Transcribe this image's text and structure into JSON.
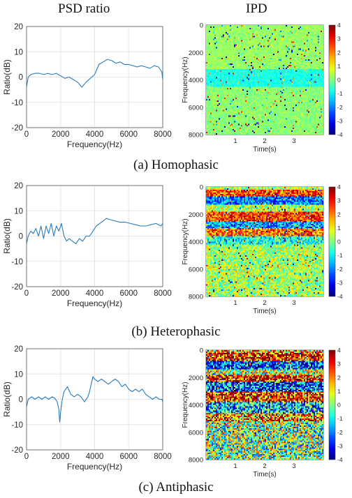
{
  "headers": {
    "left": "PSD ratio",
    "right": "IPD"
  },
  "captions": [
    "(a) Homophasic",
    "(b) Heterophasic",
    "(c) Antiphasic"
  ],
  "line_axes": {
    "xlabel": "Frequency(Hz)",
    "ylabel": "Ratio(dB)",
    "xlim": [
      0,
      8000
    ],
    "ylim": [
      -20,
      20
    ],
    "xticks": [
      "0",
      "2000",
      "4000",
      "6000",
      "8000"
    ],
    "yticks": [
      "20",
      "10",
      "0",
      "-10",
      "-20"
    ],
    "line_color": "#2a7ab8"
  },
  "heat_axes": {
    "xlabel": "Time(s)",
    "ylabel": "Frequency(Hz)",
    "xlim": [
      0,
      4
    ],
    "ylim": [
      8000,
      0
    ],
    "xticks": [
      "1",
      "2",
      "3"
    ],
    "yticks": [
      "0",
      "2000",
      "4000",
      "6000",
      "8000"
    ],
    "cbar_ticks": [
      "4",
      "3",
      "2",
      "1",
      "0",
      "-1",
      "-2",
      "-3",
      "-4"
    ],
    "cbar_range": [
      -4,
      4
    ],
    "colormap": "jet"
  },
  "chart_data": [
    {
      "type": "line",
      "panel": "a-psd",
      "x": [
        0,
        100,
        250,
        500,
        750,
        1000,
        1250,
        1500,
        1750,
        2000,
        2250,
        2500,
        2750,
        3000,
        3250,
        3500,
        3750,
        4000,
        4250,
        4500,
        4750,
        5000,
        5250,
        5500,
        5750,
        6000,
        6250,
        6500,
        6750,
        7000,
        7250,
        7500,
        7750,
        7950,
        8000
      ],
      "y": [
        -4,
        0,
        1,
        1.5,
        1.5,
        1,
        1.5,
        1,
        1.5,
        0.5,
        -0.5,
        0,
        -1,
        -2,
        -4,
        -2,
        -0.5,
        1,
        5,
        6,
        7,
        6.5,
        5.5,
        6,
        5,
        5,
        4.5,
        4,
        4.5,
        4,
        3.5,
        4.5,
        4,
        2,
        -1
      ],
      "xlim": [
        0,
        8000
      ],
      "ylim": [
        -20,
        20
      ]
    },
    {
      "type": "line",
      "panel": "b-psd",
      "x": [
        0,
        100,
        250,
        400,
        550,
        700,
        850,
        1000,
        1150,
        1300,
        1450,
        1600,
        1750,
        1900,
        2050,
        2200,
        2350,
        2500,
        2700,
        2900,
        3100,
        3300,
        3500,
        3700,
        3900,
        4100,
        4300,
        4500,
        4700,
        4900,
        5200,
        5500,
        5800,
        6100,
        6400,
        6700,
        7000,
        7300,
        7600,
        7900,
        8000
      ],
      "y": [
        -3,
        0,
        2,
        1,
        3,
        0,
        4,
        -1,
        4,
        1,
        5,
        0,
        4,
        2,
        5,
        0,
        -2,
        -1,
        -2,
        -3,
        -1,
        -2,
        0,
        0,
        2,
        4,
        5,
        6,
        7,
        6.5,
        6,
        5.5,
        5.5,
        5,
        4.5,
        4,
        4,
        4.5,
        5,
        4,
        5
      ],
      "xlim": [
        0,
        8000
      ],
      "ylim": [
        -20,
        20
      ]
    },
    {
      "type": "line",
      "panel": "c-psd",
      "x": [
        0,
        100,
        300,
        500,
        700,
        900,
        1100,
        1300,
        1500,
        1650,
        1800,
        1900,
        1950,
        2000,
        2100,
        2200,
        2400,
        2600,
        2800,
        3000,
        3200,
        3400,
        3600,
        3700,
        3800,
        3900,
        4000,
        4200,
        4400,
        4600,
        4800,
        5000,
        5200,
        5400,
        5600,
        5800,
        6000,
        6200,
        6400,
        6600,
        6800,
        7000,
        7200,
        7400,
        7600,
        7800,
        7950,
        8000
      ],
      "y": [
        -3,
        0,
        1,
        0,
        1,
        0,
        1,
        0,
        1,
        0.5,
        -1,
        -4,
        -9,
        -5,
        0,
        3,
        5,
        2,
        1,
        2,
        1,
        -1,
        1,
        3,
        6,
        9,
        8,
        7,
        8,
        7,
        6,
        7,
        8,
        7,
        5,
        6,
        4,
        3,
        4,
        3,
        4,
        2,
        1,
        0,
        1,
        0,
        0,
        -1
      ],
      "xlim": [
        0,
        8000
      ],
      "ylim": [
        -20,
        20
      ]
    },
    {
      "type": "heatmap",
      "panel": "a-ipd",
      "time_range": [
        0,
        4
      ],
      "freq_range": [
        0,
        8000
      ],
      "value_range": [
        -4,
        4
      ],
      "bands": [
        {
          "freq_from": 0,
          "freq_to": 3200,
          "typical_value": 0.2
        },
        {
          "freq_from": 3200,
          "freq_to": 4500,
          "typical_value": -0.8
        },
        {
          "freq_from": 4500,
          "freq_to": 8000,
          "typical_value": 0.1
        }
      ],
      "noise": 0.35
    },
    {
      "type": "heatmap",
      "panel": "b-ipd",
      "time_range": [
        0,
        4
      ],
      "freq_range": [
        0,
        8000
      ],
      "value_range": [
        -4,
        4
      ],
      "bands": [
        {
          "freq_from": 0,
          "freq_to": 200,
          "typical_value": 0.5
        },
        {
          "freq_from": 200,
          "freq_to": 700,
          "typical_value": 2.5
        },
        {
          "freq_from": 700,
          "freq_to": 1300,
          "typical_value": -2.0
        },
        {
          "freq_from": 1300,
          "freq_to": 1800,
          "typical_value": 0.4
        },
        {
          "freq_from": 1800,
          "freq_to": 2500,
          "typical_value": 2.6
        },
        {
          "freq_from": 2500,
          "freq_to": 3000,
          "typical_value": -1.8
        },
        {
          "freq_from": 3000,
          "freq_to": 3600,
          "typical_value": 2.2
        },
        {
          "freq_from": 3600,
          "freq_to": 4200,
          "typical_value": -0.8
        },
        {
          "freq_from": 4200,
          "freq_to": 8000,
          "typical_value": 0.3
        }
      ],
      "noise": 1.3
    },
    {
      "type": "heatmap",
      "panel": "c-ipd",
      "time_range": [
        0,
        4
      ],
      "freq_range": [
        0,
        8000
      ],
      "value_range": [
        -4,
        4
      ],
      "bands": [
        {
          "freq_from": 0,
          "freq_to": 200,
          "typical_value": 1.5
        },
        {
          "freq_from": 200,
          "freq_to": 800,
          "typical_value": 3.0
        },
        {
          "freq_from": 800,
          "freq_to": 1400,
          "typical_value": -2.5
        },
        {
          "freq_from": 1400,
          "freq_to": 1800,
          "typical_value": 0.5
        },
        {
          "freq_from": 1800,
          "freq_to": 2300,
          "typical_value": 3.0
        },
        {
          "freq_from": 2300,
          "freq_to": 3000,
          "typical_value": -2.5
        },
        {
          "freq_from": 3000,
          "freq_to": 3800,
          "typical_value": 2.8
        },
        {
          "freq_from": 3800,
          "freq_to": 4600,
          "typical_value": -1.5
        },
        {
          "freq_from": 4600,
          "freq_to": 5200,
          "typical_value": 2.0
        },
        {
          "freq_from": 5200,
          "freq_to": 8000,
          "typical_value": 0.0
        }
      ],
      "noise": 2.6
    }
  ]
}
